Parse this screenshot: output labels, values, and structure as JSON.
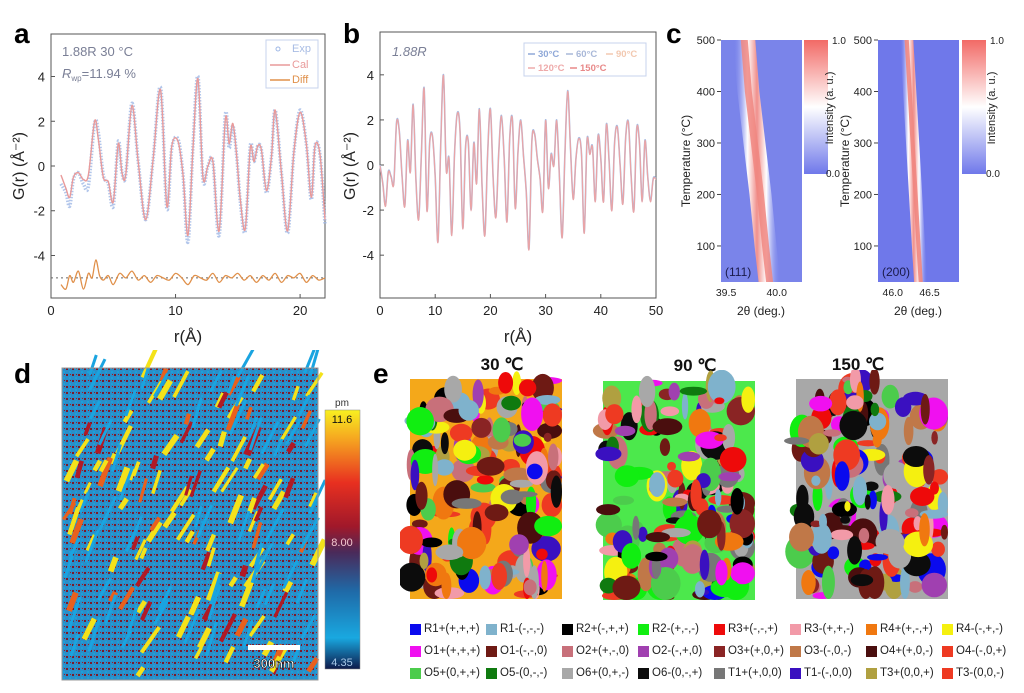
{
  "panels": {
    "a": {
      "letter": "a"
    },
    "b": {
      "letter": "b"
    },
    "c": {
      "letter": "c"
    },
    "d": {
      "letter": "d"
    },
    "e": {
      "letter": "e"
    }
  },
  "chart_data": [
    {
      "id": "a",
      "type": "line",
      "title": "",
      "annotation_line1": "1.88R  30 °C",
      "annotation_line2_prefix": "R",
      "annotation_line2_sub": "wp",
      "annotation_line2_rest": "=11.94 %",
      "xlabel": "r(Å)",
      "ylabel": "G(r) (Å⁻²)",
      "xlim": [
        0,
        22
      ],
      "ylim": [
        -5.9,
        5.9
      ],
      "xticks": [
        "0",
        "10",
        "20"
      ],
      "xtick_values": [
        0,
        10,
        20
      ],
      "yticks": [
        "-4",
        "-2",
        "0",
        "2",
        "4"
      ],
      "ytick_values": [
        -4,
        -2,
        0,
        2,
        4
      ],
      "legend": [
        "Exp",
        "Cal",
        "Diff"
      ],
      "legend_position": "top-right",
      "diff_offset": -5,
      "series": [
        {
          "name": "Exp",
          "color": "#9fb8e6",
          "style": "circles",
          "x": [
            0.8,
            1.2,
            1.5,
            1.8,
            2.2,
            2.6,
            3.0,
            3.5,
            3.8,
            4.2,
            4.6,
            5.0,
            5.4,
            5.7,
            6.0,
            6.5,
            7.0,
            7.6,
            8.2,
            8.8,
            9.3,
            9.7,
            10.2,
            10.6,
            11.0,
            11.4,
            11.8,
            12.2,
            12.6,
            13.0,
            13.5,
            14.0,
            14.3,
            14.6,
            14.9,
            15.2,
            15.6,
            16.0,
            16.3,
            16.6,
            16.9,
            17.3,
            17.7,
            18.0,
            18.5,
            19.0,
            19.5,
            20.0,
            20.5,
            20.9,
            21.2,
            21.6,
            22.0
          ],
          "y": [
            -0.8,
            -1.2,
            -1.8,
            -0.6,
            -0.3,
            -0.8,
            -0.9,
            1.9,
            1.5,
            -0.4,
            -0.8,
            -1.8,
            1.1,
            -0.3,
            -0.4,
            2.8,
            0.2,
            -2.4,
            0.3,
            3.5,
            -1.9,
            0.8,
            1.2,
            -0.4,
            -3.4,
            0.9,
            4.0,
            -0.6,
            0.0,
            0.2,
            -3.1,
            2.3,
            0.8,
            1.8,
            0.5,
            -1.6,
            -2.9,
            0.9,
            0.2,
            0.9,
            0.7,
            -1.2,
            0.4,
            2.5,
            -0.3,
            -3.0,
            0.6,
            2.5,
            1.0,
            -1.5,
            0.9,
            0.5,
            -2.6
          ]
        },
        {
          "name": "Cal",
          "color": "#e99a9a",
          "style": "line",
          "x": [
            0.8,
            1.2,
            1.5,
            1.8,
            2.2,
            2.6,
            3.0,
            3.5,
            3.8,
            4.2,
            4.6,
            5.0,
            5.4,
            5.7,
            6.0,
            6.5,
            7.0,
            7.6,
            8.2,
            8.8,
            9.3,
            9.7,
            10.2,
            10.6,
            11.0,
            11.4,
            11.8,
            12.2,
            12.6,
            13.0,
            13.5,
            14.0,
            14.3,
            14.6,
            14.9,
            15.2,
            15.6,
            16.0,
            16.3,
            16.6,
            16.9,
            17.3,
            17.7,
            18.0,
            18.5,
            19.0,
            19.5,
            20.0,
            20.5,
            20.9,
            21.2,
            21.6,
            22.0
          ],
          "y": [
            -0.4,
            -1.0,
            -1.4,
            -0.5,
            -0.3,
            -0.6,
            -0.4,
            2.0,
            1.2,
            -0.5,
            -0.7,
            -1.6,
            1.0,
            -0.3,
            -0.4,
            2.7,
            0.2,
            -2.4,
            0.3,
            3.4,
            -1.8,
            0.9,
            1.1,
            -0.4,
            -3.1,
            0.8,
            3.9,
            -0.5,
            0.0,
            0.2,
            -2.9,
            2.1,
            1.0,
            1.9,
            0.5,
            -1.5,
            -2.8,
            0.8,
            0.2,
            0.9,
            0.7,
            -1.1,
            0.4,
            2.5,
            -0.3,
            -2.9,
            0.6,
            2.4,
            1.0,
            -1.4,
            0.9,
            0.5,
            -2.4
          ]
        },
        {
          "name": "Diff",
          "color": "#e0904a",
          "style": "line",
          "x": [
            0.8,
            1.2,
            1.5,
            1.8,
            2.2,
            2.6,
            3.0,
            3.3,
            3.6,
            3.9,
            4.2,
            4.6,
            5.0,
            5.5,
            6.0,
            6.5,
            7.0,
            7.5,
            8.0,
            8.5,
            9.0,
            9.5,
            10.0,
            10.5,
            11.0,
            11.5,
            12.0,
            12.5,
            13.0,
            13.5,
            14.0,
            14.5,
            15.0,
            15.5,
            16.0,
            16.5,
            17.0,
            17.5,
            18.0,
            18.5,
            19.0,
            19.5,
            20.0,
            20.5,
            21.0,
            21.5,
            22.0
          ],
          "y": [
            -5.3,
            -5.5,
            -4.9,
            -5.2,
            -4.7,
            -5.5,
            -4.8,
            -5.0,
            -4.2,
            -4.9,
            -5.1,
            -4.9,
            -5.3,
            -4.8,
            -5.0,
            -4.7,
            -5.1,
            -4.9,
            -5.2,
            -4.9,
            -5.0,
            -5.1,
            -4.8,
            -5.0,
            -5.3,
            -4.9,
            -5.0,
            -5.1,
            -4.8,
            -5.2,
            -4.9,
            -5.0,
            -4.8,
            -5.1,
            -4.9,
            -5.2,
            -4.9,
            -5.1,
            -4.8,
            -5.2,
            -4.9,
            -5.0,
            -4.8,
            -5.2,
            -4.9,
            -5.1,
            -5.0
          ]
        }
      ]
    },
    {
      "id": "b",
      "type": "line",
      "annotation": "1.88R",
      "xlabel": "r(Å)",
      "ylabel": "G(r) (Å⁻²)",
      "xlim": [
        0,
        50
      ],
      "ylim": [
        -5.9,
        5.9
      ],
      "xticks": [
        "0",
        "10",
        "20",
        "30",
        "40",
        "50"
      ],
      "xtick_values": [
        0,
        10,
        20,
        30,
        40,
        50
      ],
      "yticks": [
        "-4",
        "-2",
        "0",
        "2",
        "4"
      ],
      "ytick_values": [
        -4,
        -2,
        0,
        2,
        4
      ],
      "legend": [
        "30°C",
        "60°C",
        "90°C",
        "120°C",
        "150°C"
      ],
      "legend_colors": [
        "#8fa8d8",
        "#a9b8d8",
        "#f2c8b0",
        "#eeaaaa",
        "#e88888"
      ],
      "legend_position": "top-right",
      "series": [
        {
          "name": "30°C",
          "color": "#9fb4dc",
          "x": [
            0,
            0.5,
            1,
            1.5,
            2,
            2.5,
            3,
            3.5,
            4,
            4.5,
            5,
            5.5,
            6,
            6.5,
            7,
            7.5,
            8,
            8.5,
            9,
            9.5,
            10,
            10.5,
            11,
            11.5,
            12,
            12.5,
            13,
            13.5,
            14,
            14.5,
            15,
            15.5,
            16,
            16.5,
            17,
            17.5,
            18,
            18.5,
            19,
            19.5,
            20,
            20.5,
            21,
            21.5,
            22,
            22.5,
            23,
            23.5,
            24,
            24.5,
            25,
            25.5,
            26,
            26.5,
            27,
            27.5,
            28,
            28.5,
            29,
            29.5,
            30,
            30.5,
            31,
            31.5,
            32,
            32.5,
            33,
            33.5,
            34,
            34.5,
            35,
            35.5,
            36,
            36.5,
            37,
            37.5,
            38,
            38.5,
            39,
            39.5,
            40,
            40.5,
            41,
            41.5,
            42,
            42.5,
            43,
            43.5,
            44,
            44.5,
            45,
            45.5,
            46,
            46.5,
            47,
            47.5,
            48,
            48.5,
            49,
            49.5,
            50
          ],
          "y": [
            0,
            -0.8,
            -1.8,
            -0.3,
            -0.5,
            -0.8,
            1.9,
            1.5,
            -0.5,
            -1.8,
            1.1,
            -0.3,
            2.7,
            -0.6,
            -2.4,
            0.5,
            3.4,
            -2.0,
            1.0,
            1.3,
            -0.5,
            -3.4,
            0.9,
            4.0,
            -0.2,
            0.3,
            -3.1,
            0.5,
            2.3,
            1.5,
            -2.8,
            0.8,
            1.0,
            -2.0,
            1.0,
            -0.8,
            2.5,
            -1.0,
            -3.1,
            0.5,
            2.5,
            -0.6,
            -2.3,
            0.5,
            2.2,
            0.3,
            -2.5,
            1.2,
            2.0,
            -1.9,
            0.6,
            2.0,
            0.4,
            -1.2,
            -3.7,
            1.0,
            1.4,
            0.3,
            -0.6,
            -2.0,
            2.0,
            -1.0,
            0.5,
            0.0,
            2.0,
            -0.5,
            -3.2,
            0.5,
            3.3,
            0.8,
            -1.5,
            0.3,
            1.2,
            0.5,
            -3.0,
            1.1,
            0.5,
            0.8,
            -1.6,
            1.3,
            0.3,
            -1.6,
            1.8,
            0.2,
            -2.0,
            1.0,
            1.7,
            0.0,
            -1.7,
            1.2,
            1.9,
            -0.5,
            -2.0,
            1.6,
            1.0,
            -1.6,
            1.1,
            -0.5,
            -1.6,
            -0.6,
            -0.6
          ]
        }
      ]
    },
    {
      "id": "c-left",
      "type": "heatmap",
      "label": "(111)",
      "xlabel": "2θ (deg.)",
      "ylabel": "Temperature (°C)",
      "xticks": [
        "39.5",
        "40.0"
      ],
      "yticks": [
        "100",
        "200",
        "300",
        "400",
        "500"
      ],
      "ylim": [
        30,
        500
      ],
      "xlim": [
        39.45,
        40.25
      ],
      "colorbar_label": "Intensity (a. u.)",
      "colorbar_range": [
        0.0,
        1.0
      ],
      "colorbar_ticks": [
        "0.0",
        "1.0"
      ],
      "peak_position_vs_temperature": [
        [
          30,
          39.93
        ],
        [
          100,
          39.89
        ],
        [
          200,
          39.84
        ],
        [
          300,
          39.78
        ],
        [
          400,
          39.72
        ],
        [
          500,
          39.68
        ]
      ]
    },
    {
      "id": "c-right",
      "type": "heatmap",
      "label": "(200)",
      "xlabel": "2θ (deg.)",
      "ylabel": "Temperature (°C)",
      "xticks": [
        "46.0",
        "46.5"
      ],
      "yticks": [
        "100",
        "200",
        "300",
        "400",
        "500"
      ],
      "ylim": [
        30,
        500
      ],
      "xlim": [
        45.8,
        46.9
      ],
      "colorbar_label": "Intensity (a. u.)",
      "colorbar_range": [
        0.0,
        1.0
      ],
      "colorbar_ticks": [
        "0.0",
        "1.0"
      ],
      "peak_position_vs_temperature": [
        [
          30,
          46.38
        ],
        [
          100,
          46.35
        ],
        [
          200,
          46.31
        ],
        [
          300,
          46.27
        ],
        [
          400,
          46.23
        ],
        [
          500,
          46.19
        ]
      ]
    },
    {
      "id": "d",
      "type": "heatmap",
      "colorbar_unit": "pm",
      "colorbar_ticks": [
        "11.6",
        "8.00",
        "4.35"
      ],
      "colorbar_range": [
        4.35,
        11.6
      ],
      "scale_bar": "300nm"
    }
  ],
  "panel_e": {
    "maps": [
      {
        "title": "30 ℃"
      },
      {
        "title": "90 ℃"
      },
      {
        "title": "150 ℃"
      }
    ],
    "legend": [
      [
        {
          "label": "R1+(+,+,+)",
          "color": "#0a0aee"
        },
        {
          "label": "R1-(-,-,-)",
          "color": "#7fb2cc"
        },
        {
          "label": "R2+(-,+,+)",
          "color": "#000000"
        },
        {
          "label": "R2-(+,-,-)",
          "color": "#11ee11"
        },
        {
          "label": "R3+(-,-,+)",
          "color": "#ee0a0a"
        },
        {
          "label": "R3-(+,+,-)",
          "color": "#f29aa8"
        },
        {
          "label": "R4+(+,-,+)",
          "color": "#f07810"
        },
        {
          "label": "R4-(-,+,-)",
          "color": "#f5f010"
        }
      ],
      [
        {
          "label": "O1+(+,+,+)",
          "color": "#f010f0"
        },
        {
          "label": "O1-(-,-,0)",
          "color": "#6e1a14"
        },
        {
          "label": "O2+(+,-,0)",
          "color": "#c8707a"
        },
        {
          "label": "O2-(-,+,0)",
          "color": "#a040b0"
        },
        {
          "label": "O3+(+,0,+)",
          "color": "#8a2424"
        },
        {
          "label": "O3-(-,0,-)",
          "color": "#c07848"
        },
        {
          "label": "O4+(+,0,-)",
          "color": "#4a0e0e"
        },
        {
          "label": "O4-(-,0,+)",
          "color": "#ee3a22"
        }
      ],
      [
        {
          "label": "O5+(0,+,+)",
          "color": "#4ccc4c"
        },
        {
          "label": "O5-(0,-,-)",
          "color": "#0f7a0f"
        },
        {
          "label": "O6+(0,+,-)",
          "color": "#a8a8a8"
        },
        {
          "label": "O6-(0,-,+)",
          "color": "#0c0c0c"
        },
        {
          "label": "T1+(+,0,0)",
          "color": "#777777"
        },
        {
          "label": "T1-(-,0,0)",
          "color": "#3a10c0"
        },
        {
          "label": "T3+(0,0,+)",
          "color": "#b0a040"
        },
        {
          "label": "T3-(0,0,-)",
          "color": "#ee3a22"
        }
      ]
    ]
  }
}
